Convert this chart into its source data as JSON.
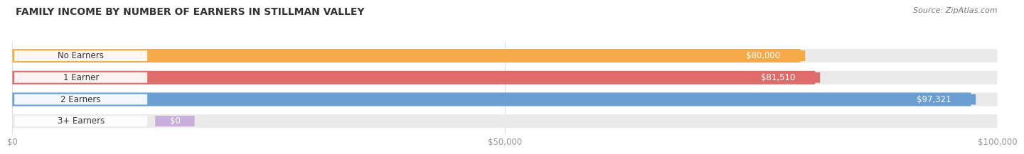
{
  "title": "FAMILY INCOME BY NUMBER OF EARNERS IN STILLMAN VALLEY",
  "source": "Source: ZipAtlas.com",
  "categories": [
    "No Earners",
    "1 Earner",
    "2 Earners",
    "3+ Earners"
  ],
  "values": [
    80000,
    81510,
    97321,
    0
  ],
  "value_labels": [
    "$80,000",
    "$81,510",
    "$97,321",
    "$0"
  ],
  "bar_colors": [
    "#F5A947",
    "#E06B6B",
    "#6B9FD4",
    "#C9AEDD"
  ],
  "bar_bg_color": "#EAEAEA",
  "background_color": "#FFFFFF",
  "xlim": [
    0,
    100000
  ],
  "xtick_labels": [
    "$0",
    "$50,000",
    "$100,000"
  ],
  "xtick_values": [
    0,
    50000,
    100000
  ],
  "title_fontsize": 10,
  "source_fontsize": 8,
  "label_fontsize": 8.5,
  "value_fontsize": 8.5
}
